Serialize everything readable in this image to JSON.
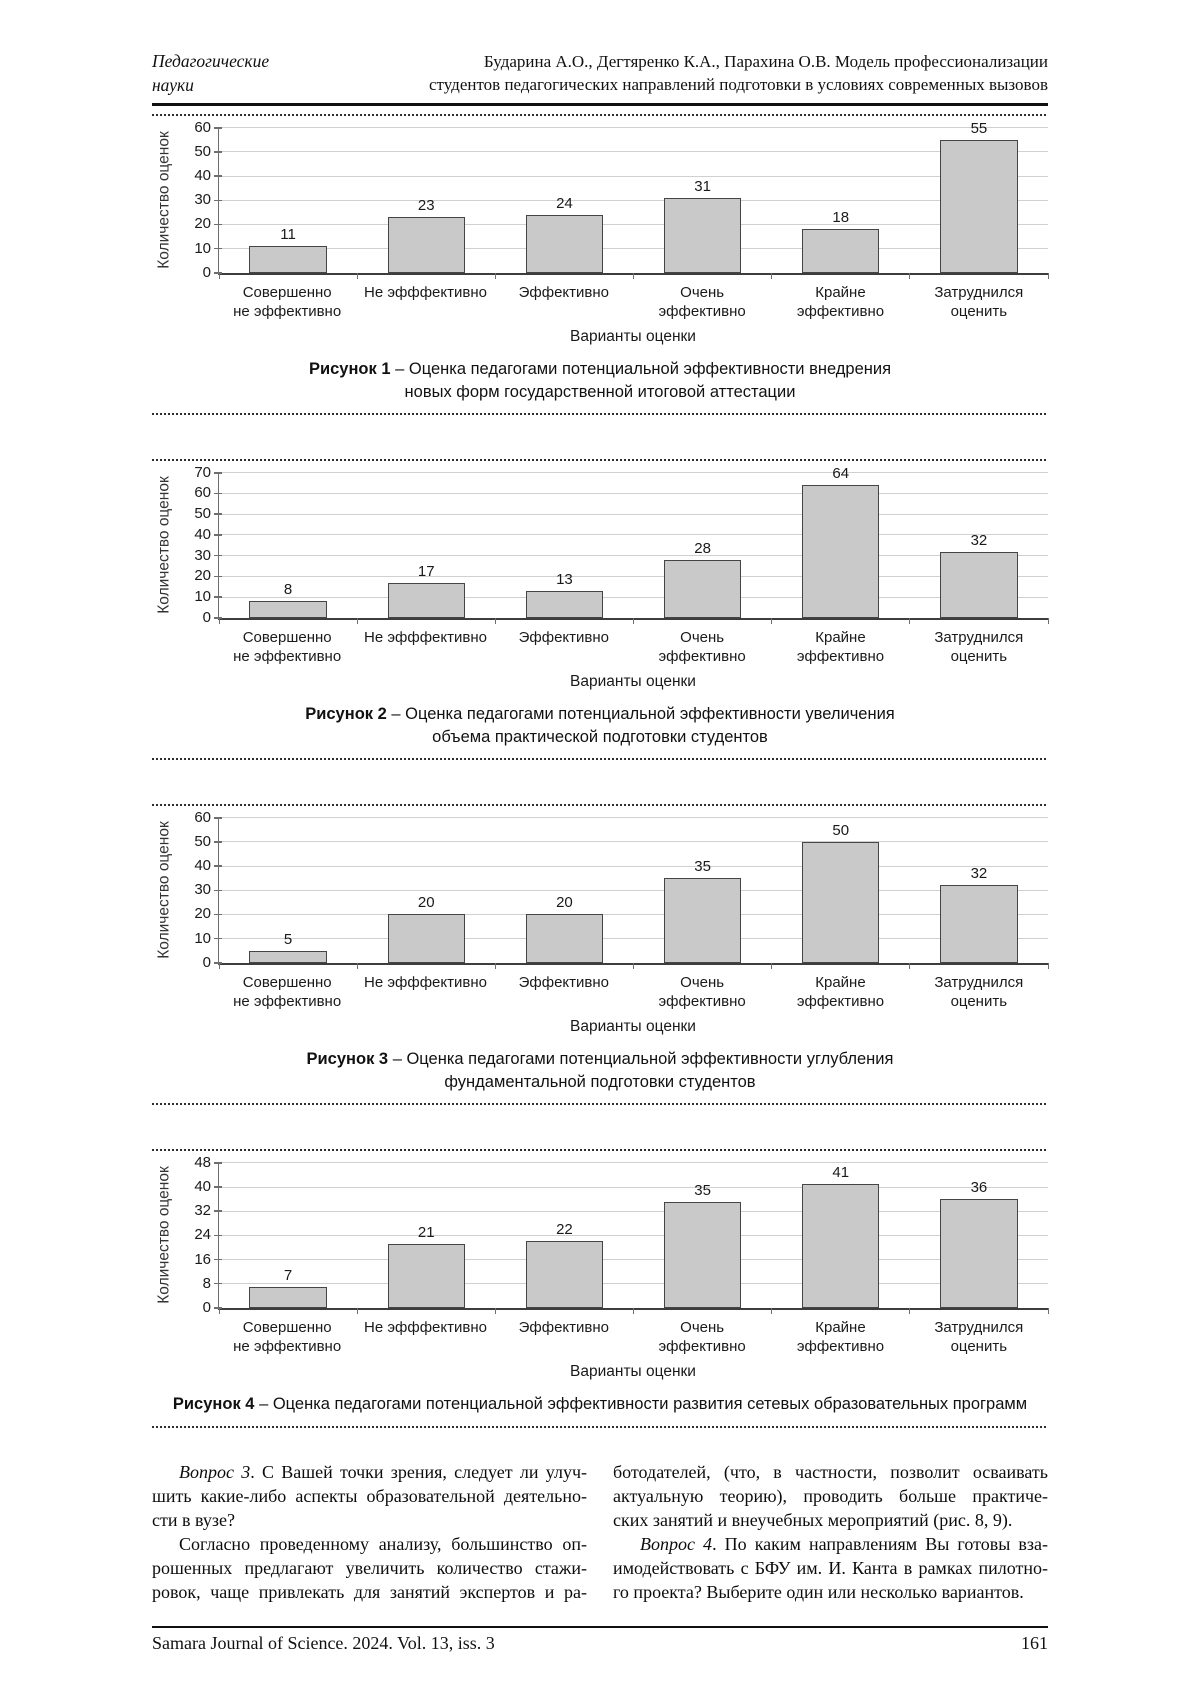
{
  "header": {
    "section_line1": "Педагогические",
    "section_line2": "науки",
    "authors_line1": "Бударина А.О., Дегтяренко К.А., Парахина О.В. Модель профессионализации",
    "authors_line2": "студентов педагогических направлений подготовки в условиях современных вызовов"
  },
  "chart_common": {
    "ylabel": "Количество оценок",
    "xlabel": "Варианты оценки",
    "categories_lines": [
      [
        "Совершенно",
        "не эффективно"
      ],
      [
        "Не эфффективно"
      ],
      [
        "Эффективно"
      ],
      [
        "Очень",
        "эффективно"
      ],
      [
        "Крайне",
        "эффективно"
      ],
      [
        "Затруднился",
        "оценить"
      ]
    ],
    "bar_fill": "#c9c9c9",
    "bar_border": "#454545",
    "grid_color": "#d0d0d0"
  },
  "chart_data": [
    {
      "type": "bar",
      "figure_label": "Рисунок 1",
      "caption_lines": [
        "– Оценка педагогами потенциальной эффективности внедрения",
        "новых форм государственной итоговой аттестации"
      ],
      "categories": [
        "Совершенно не эффективно",
        "Не эфффективно",
        "Эффективно",
        "Очень эффективно",
        "Крайне эффективно",
        "Затруднился оценить"
      ],
      "values": [
        11,
        23,
        24,
        31,
        18,
        55
      ],
      "xlabel": "Варианты оценки",
      "ylabel": "Количество оценок",
      "ylim": [
        0,
        60
      ],
      "ytick_step": 10,
      "grid": true,
      "legend": false
    },
    {
      "type": "bar",
      "figure_label": "Рисунок 2",
      "caption_lines": [
        "– Оценка педагогами потенциальной эффективности увеличения",
        "объема практической подготовки студентов"
      ],
      "categories": [
        "Совершенно не эффективно",
        "Не эфффективно",
        "Эффективно",
        "Очень эффективно",
        "Крайне эффективно",
        "Затруднился оценить"
      ],
      "values": [
        8,
        17,
        13,
        28,
        64,
        32
      ],
      "xlabel": "Варианты оценки",
      "ylabel": "Количество оценок",
      "ylim": [
        0,
        70
      ],
      "ytick_step": 10,
      "grid": true,
      "legend": false
    },
    {
      "type": "bar",
      "figure_label": "Рисунок 3",
      "caption_lines": [
        "– Оценка педагогами потенциальной эффективности углубления",
        "фундаментальной подготовки студентов"
      ],
      "categories": [
        "Совершенно не эффективно",
        "Не эфффективно",
        "Эффективно",
        "Очень эффективно",
        "Крайне эффективно",
        "Затруднился оценить"
      ],
      "values": [
        5,
        20,
        20,
        35,
        50,
        32
      ],
      "xlabel": "Варианты оценки",
      "ylabel": "Количество оценок",
      "ylim": [
        0,
        60
      ],
      "ytick_step": 10,
      "grid": true,
      "legend": false
    },
    {
      "type": "bar",
      "figure_label": "Рисунок 4",
      "caption_lines": [
        "– Оценка педагогами потенциальной эффективности развития сетевых образовательных программ"
      ],
      "categories": [
        "Совершенно не эффективно",
        "Не эфффективно",
        "Эффективно",
        "Очень эффективно",
        "Крайне эффективно",
        "Затруднился оценить"
      ],
      "values": [
        7,
        21,
        22,
        35,
        41,
        36
      ],
      "xlabel": "Варианты оценки",
      "ylabel": "Количество оценок",
      "ylim": [
        0,
        48
      ],
      "ytick_step": 8,
      "grid": true,
      "legend": false
    }
  ],
  "body": {
    "left_lines": [
      {
        "lead": "Вопрос 3",
        "text": ". С Вашей точки зрения, следует ли улуч-",
        "indent": true,
        "fill": true
      },
      {
        "lead": "",
        "text": "шить какие-либо аспекты образовательной деятельно-",
        "indent": false,
        "fill": true
      },
      {
        "lead": "",
        "text": "сти в вузе?",
        "indent": false,
        "fill": false
      },
      {
        "lead": "",
        "text": "Согласно проведенному анализу, большинство оп-",
        "indent": true,
        "fill": true
      },
      {
        "lead": "",
        "text": "рошенных предлагают увеличить количество стажи-",
        "indent": false,
        "fill": true
      },
      {
        "lead": "",
        "text": "ровок, чаще привлекать для занятий экспертов и ра-",
        "indent": false,
        "fill": true
      }
    ],
    "right_lines": [
      {
        "lead": "",
        "text": "ботодателей, (что, в частности, позволит осваивать",
        "indent": false,
        "fill": true
      },
      {
        "lead": "",
        "text": "актуальную теорию), проводить больше практиче-",
        "indent": false,
        "fill": true
      },
      {
        "lead": "",
        "text": "ских занятий и внеучебных мероприятий (рис. 8, 9).",
        "indent": false,
        "fill": false
      },
      {
        "lead": "Вопрос 4",
        "text": ". По каким направлениям Вы готовы вза-",
        "indent": true,
        "fill": true
      },
      {
        "lead": "",
        "text": "имодействовать с БФУ им. И. Канта в рамках пилотно-",
        "indent": false,
        "fill": true
      },
      {
        "lead": "",
        "text": "го проекта? Выберите один или несколько вариантов.",
        "indent": false,
        "fill": false
      }
    ]
  },
  "footer": {
    "journal": "Samara Journal of Science. 2024. Vol. 13, iss. 3",
    "page": "161"
  }
}
